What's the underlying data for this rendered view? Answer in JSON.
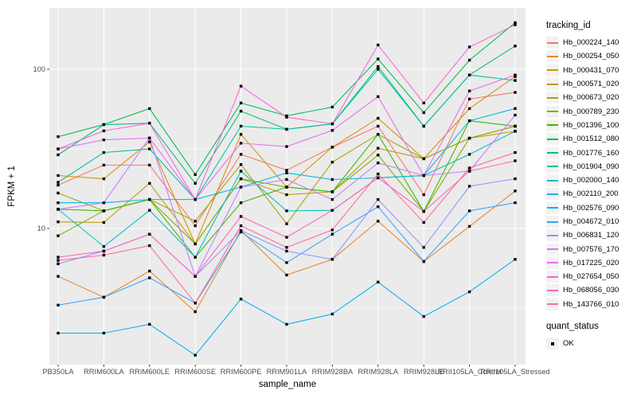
{
  "legend": {
    "tracking_title": "tracking_id",
    "quant_title": "quant_status",
    "quant_ok_label": "OK"
  },
  "chart_data": {
    "type": "line",
    "title": "",
    "xlabel": "sample_name",
    "ylabel": "FPKM + 1",
    "yscale": "log10",
    "yticks": [
      10,
      100
    ],
    "ylim": [
      1.3,
      240
    ],
    "grid": true,
    "legend_position": "right",
    "panel_background": "#EBEBEB",
    "grid_color": "#FFFFFF",
    "point_shape": "filled-square",
    "point_color": "#000000",
    "quant_status_value": "OK",
    "categories": [
      "PB350LA",
      "RRIM600LA",
      "RRIM600LE",
      "RRIM600SE",
      "RRIM600PE",
      "RRIM901LA",
      "RRIM928BA",
      "RRIM928LA",
      "RRIM928LE",
      "RRII105LA_Control",
      "RRII105LA_Stressed"
    ],
    "series": [
      {
        "name": "Hb_000224_140",
        "color": "#F8766D",
        "values": [
          18.7,
          25.0,
          25.0,
          10.4,
          29.2,
          23.2,
          32.4,
          43.9,
          16.3,
          65.0,
          71.5
        ]
      },
      {
        "name": "Hb_000254_050",
        "color": "#E88526",
        "values": [
          5.0,
          3.7,
          5.4,
          3.0,
          9.7,
          5.1,
          6.4,
          11.1,
          6.2,
          10.3,
          17.2
        ]
      },
      {
        "name": "Hb_000431_070",
        "color": "#D89000",
        "values": [
          21.5,
          20.5,
          35.0,
          8.0,
          39.0,
          18.2,
          32.4,
          49.2,
          27.4,
          56.6,
          90.0
        ]
      },
      {
        "name": "Hb_000571_020",
        "color": "#C09B00",
        "values": [
          11.0,
          10.9,
          19.2,
          8.0,
          20.5,
          16.3,
          17.0,
          31.9,
          27.4,
          36.9,
          40.8
        ]
      },
      {
        "name": "Hb_000673_020",
        "color": "#A3A500",
        "values": [
          16.7,
          12.9,
          15.2,
          11.1,
          25.2,
          10.7,
          26.1,
          39.0,
          27.4,
          36.9,
          43.9
        ]
      },
      {
        "name": "Hb_000789_230",
        "color": "#7CAE00",
        "values": [
          9.0,
          12.9,
          15.2,
          8.0,
          20.5,
          18.2,
          17.0,
          28.9,
          12.8,
          36.9,
          43.9
        ]
      },
      {
        "name": "Hb_001396_100",
        "color": "#39B600",
        "values": [
          13.2,
          12.9,
          15.2,
          6.6,
          14.5,
          18.2,
          17.0,
          39.0,
          12.8,
          47.5,
          43.9
        ]
      },
      {
        "name": "Hb_001512_080",
        "color": "#00BB4E",
        "values": [
          37.7,
          45.0,
          56.6,
          21.8,
          61.4,
          51.0,
          57.9,
          116.0,
          53.4,
          114.0,
          196.0
        ]
      },
      {
        "name": "Hb_001776_160",
        "color": "#00BF7D",
        "values": [
          29.0,
          44.9,
          45.8,
          19.2,
          54.6,
          42.0,
          45.4,
          104.0,
          43.9,
          92.0,
          140.0
        ]
      },
      {
        "name": "Hb_001904_090",
        "color": "#00C1A3",
        "values": [
          19.5,
          30.0,
          31.6,
          15.2,
          43.9,
          42.0,
          45.4,
          100.0,
          43.9,
          92.0,
          85.0
        ]
      },
      {
        "name": "Hb_002000_140",
        "color": "#00BFC4",
        "values": [
          13.2,
          7.7,
          13.0,
          6.6,
          22.9,
          12.9,
          13.0,
          20.8,
          21.5,
          29.2,
          40.8
        ]
      },
      {
        "name": "Hb_002110_200",
        "color": "#00BAE0",
        "values": [
          14.5,
          14.5,
          15.2,
          15.2,
          18.2,
          22.3,
          20.3,
          20.8,
          21.5,
          47.5,
          56.6
        ]
      },
      {
        "name": "Hb_002576_090",
        "color": "#00B0F6",
        "values": [
          2.2,
          2.2,
          2.5,
          1.6,
          3.6,
          2.5,
          2.9,
          4.6,
          2.8,
          4.0,
          6.4
        ]
      },
      {
        "name": "Hb_004672_010",
        "color": "#35A2FF",
        "values": [
          3.3,
          3.7,
          4.9,
          3.4,
          9.5,
          6.1,
          9.2,
          13.7,
          6.2,
          12.9,
          14.5
        ]
      },
      {
        "name": "Hb_006831_120",
        "color": "#9590FF",
        "values": [
          6.0,
          7.2,
          9.2,
          5.0,
          9.7,
          7.2,
          6.4,
          15.2,
          7.6,
          18.4,
          20.5
        ]
      },
      {
        "name": "Hb_007576_170",
        "color": "#C77CFF",
        "values": [
          13.2,
          14.5,
          37.0,
          5.0,
          18.2,
          20.3,
          15.2,
          25.8,
          21.5,
          22.9,
          51.5
        ]
      },
      {
        "name": "Hb_017225_020",
        "color": "#E76BF3",
        "values": [
          31.6,
          36.0,
          37.0,
          15.2,
          34.3,
          32.7,
          41.3,
          67.3,
          21.5,
          73.0,
          92.0
        ]
      },
      {
        "name": "Hb_027654_050",
        "color": "#FA62DB",
        "values": [
          31.6,
          41.0,
          45.8,
          15.2,
          78.3,
          50.0,
          45.4,
          142.0,
          61.4,
          138.0,
          190.0
        ]
      },
      {
        "name": "Hb_068056_030",
        "color": "#FF62BC",
        "values": [
          6.6,
          7.2,
          9.2,
          5.0,
          11.9,
          8.8,
          13.0,
          20.8,
          12.8,
          22.9,
          26.6
        ]
      },
      {
        "name": "Hb_143766_010",
        "color": "#FF6A98",
        "values": [
          6.3,
          6.8,
          7.8,
          3.4,
          10.4,
          7.6,
          9.8,
          22.0,
          10.9,
          24.0,
          30.0
        ]
      }
    ]
  }
}
